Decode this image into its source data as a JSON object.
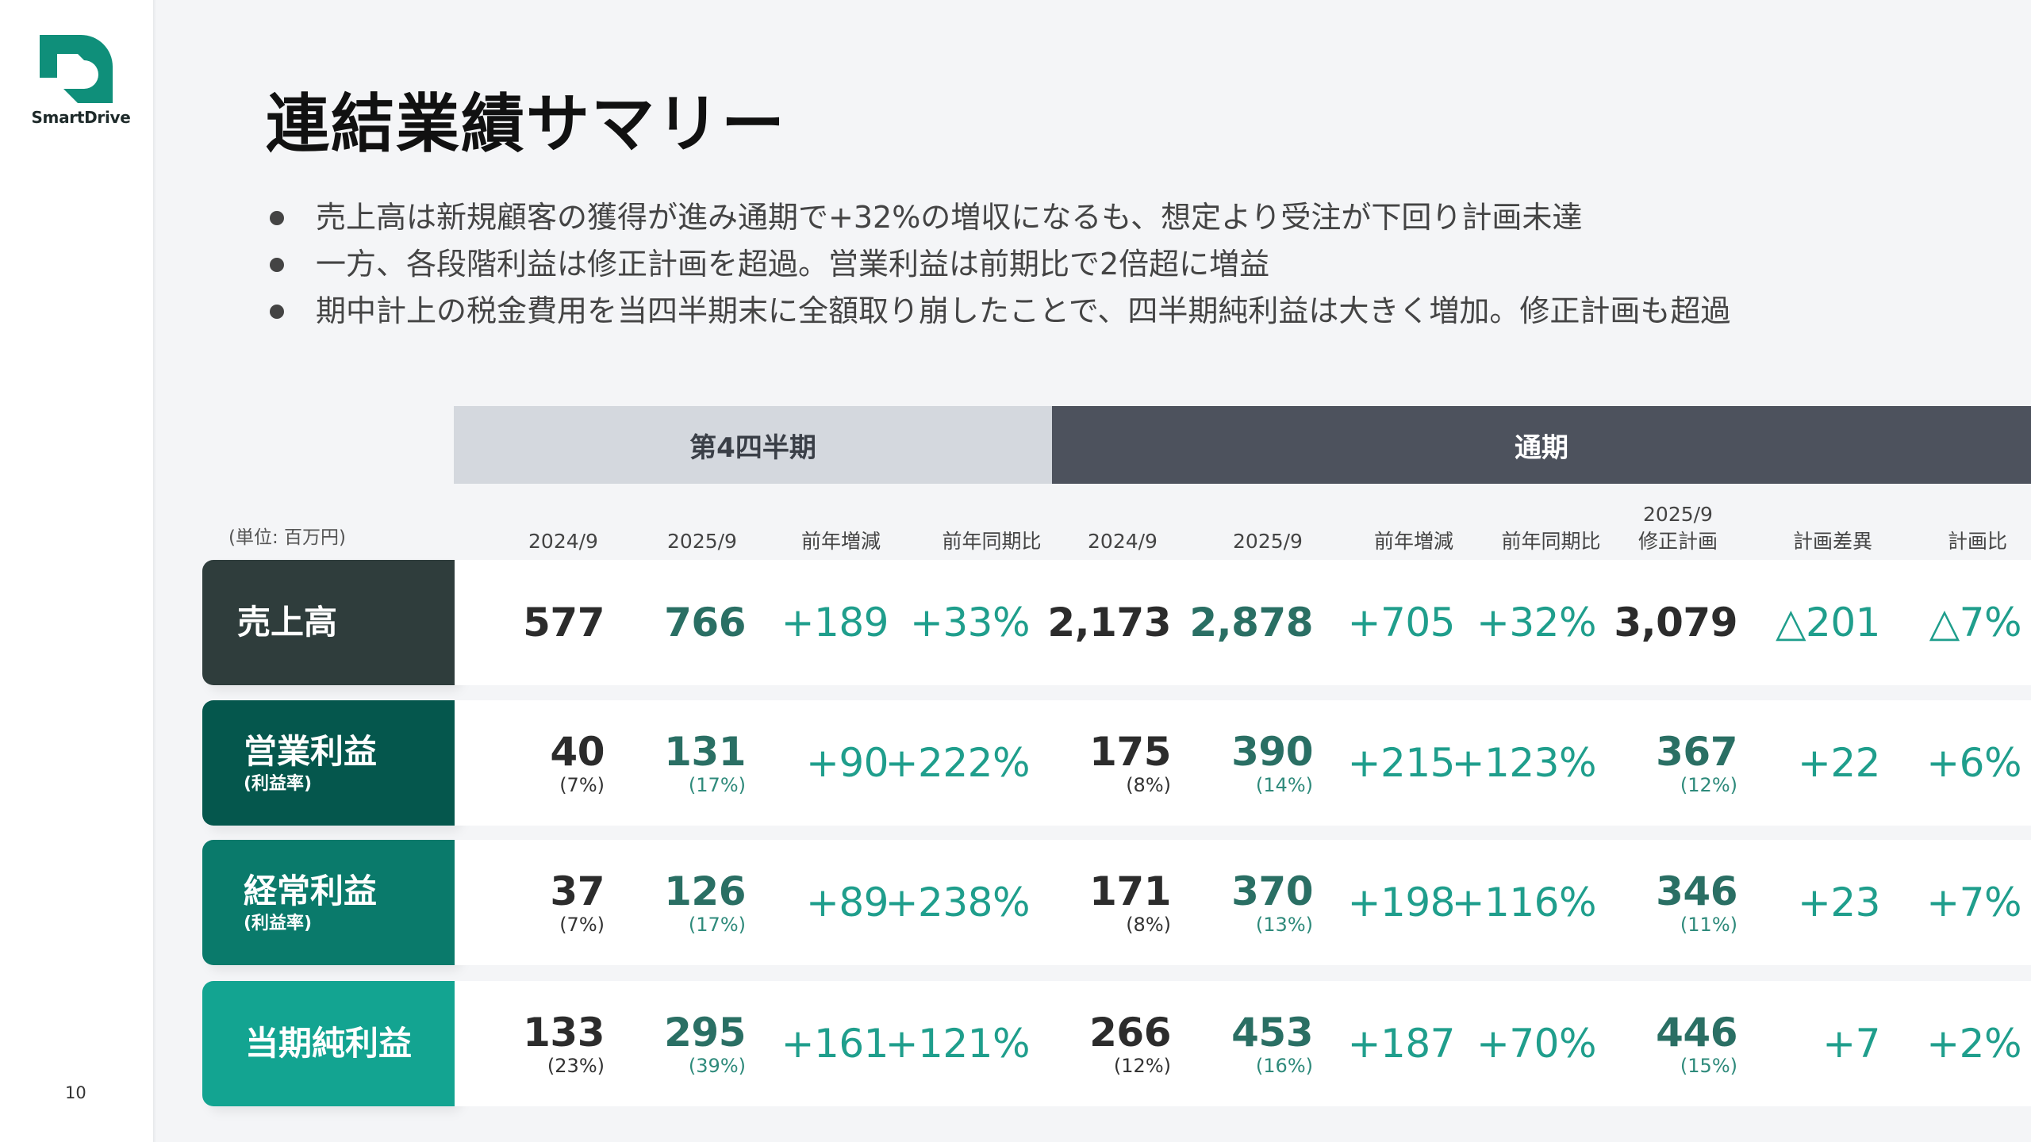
{
  "brand": {
    "name": "SmartDrive",
    "color": "#0f8f7a"
  },
  "page_number": "10",
  "title": "連結業績サマリー",
  "bullets": [
    "売上高は新規顧客の獲得が進み通期で+32%の増収になるも、想定より受注が下回り計画未達",
    "一方、各段階利益は修正計画を超過。営業利益は前期比で2倍超に増益",
    "期中計上の税金費用を当四半期末に全額取り崩したことで、四半期純利益は大きく増加。修正計画も超過"
  ],
  "table": {
    "unit": "(単位: 百万円)",
    "group_headers": {
      "q4": "第4四半期",
      "fy": "通期"
    },
    "columns": {
      "q4_prev": "2024/9",
      "q4_curr": "2025/9",
      "q4_diff": "前年増減",
      "q4_ratio": "前年同期比",
      "fy_prev": "2024/9",
      "fy_curr": "2025/9",
      "fy_diff": "前年増減",
      "fy_ratio": "前年同期比",
      "plan_line1": "2025/9",
      "plan_line2": "修正計画",
      "plan_gap": "計画差異",
      "plan_ratio": "計画比"
    },
    "rows": [
      {
        "label": "売上高",
        "sublabel": "",
        "color": "#2f3d3c",
        "q4_prev": "577",
        "q4_prev_sub": "",
        "q4_curr": "766",
        "q4_curr_sub": "",
        "q4_diff": "+189",
        "q4_ratio": "+33%",
        "fy_prev": "2,173",
        "fy_prev_sub": "",
        "fy_curr": "2,878",
        "fy_curr_sub": "",
        "fy_diff": "+705",
        "fy_ratio": "+32%",
        "plan": "3,079",
        "plan_sub": "",
        "plan_gap": "△201",
        "plan_ratio": "△7%"
      },
      {
        "label": "営業利益",
        "sublabel": "(利益率)",
        "color": "#05574d",
        "q4_prev": "40",
        "q4_prev_sub": "(7%)",
        "q4_curr": "131",
        "q4_curr_sub": "(17%)",
        "q4_diff": "+90",
        "q4_ratio": "+222%",
        "fy_prev": "175",
        "fy_prev_sub": "(8%)",
        "fy_curr": "390",
        "fy_curr_sub": "(14%)",
        "fy_diff": "+215",
        "fy_ratio": "+123%",
        "plan": "367",
        "plan_sub": "(12%)",
        "plan_gap": "+22",
        "plan_ratio": "+6%"
      },
      {
        "label": "経常利益",
        "sublabel": "(利益率)",
        "color": "#0a7a6b",
        "q4_prev": "37",
        "q4_prev_sub": "(7%)",
        "q4_curr": "126",
        "q4_curr_sub": "(17%)",
        "q4_diff": "+89",
        "q4_ratio": "+238%",
        "fy_prev": "171",
        "fy_prev_sub": "(8%)",
        "fy_curr": "370",
        "fy_curr_sub": "(13%)",
        "fy_diff": "+198",
        "fy_ratio": "+116%",
        "plan": "346",
        "plan_sub": "(11%)",
        "plan_gap": "+23",
        "plan_ratio": "+7%"
      },
      {
        "label": "当期純利益",
        "sublabel": "",
        "color": "#13a491",
        "q4_prev": "133",
        "q4_prev_sub": "(23%)",
        "q4_curr": "295",
        "q4_curr_sub": "(39%)",
        "q4_diff": "+161",
        "q4_ratio": "+121%",
        "fy_prev": "266",
        "fy_prev_sub": "(12%)",
        "fy_curr": "453",
        "fy_curr_sub": "(16%)",
        "fy_diff": "+187",
        "fy_ratio": "+70%",
        "plan": "446",
        "plan_sub": "(15%)",
        "plan_gap": "+7",
        "plan_ratio": "+2%"
      }
    ]
  }
}
